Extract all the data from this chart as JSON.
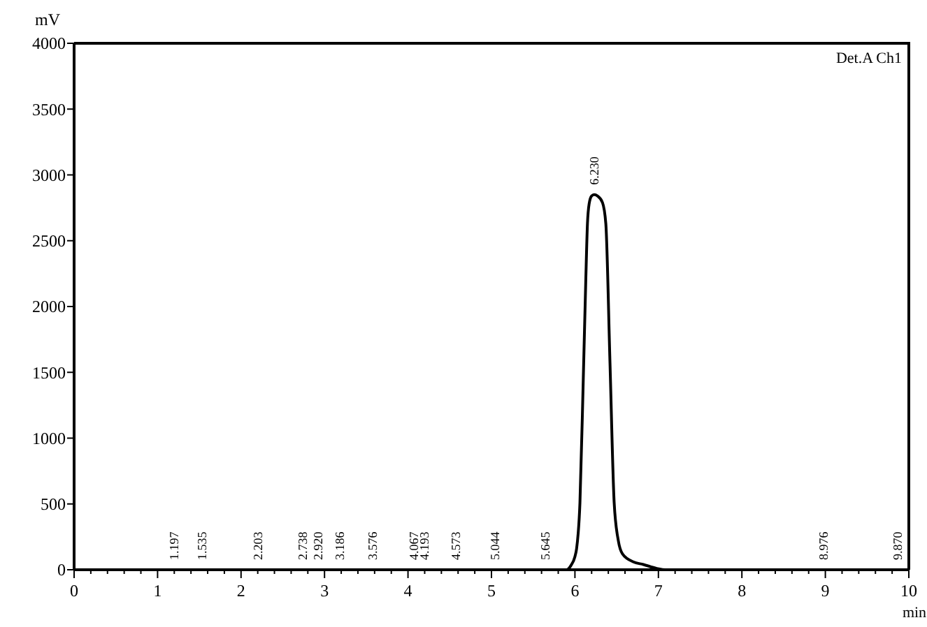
{
  "chart_data": {
    "type": "line",
    "xlabel": "min",
    "ylabel": "mV",
    "x": [
      0,
      5.9,
      5.95,
      6.0,
      6.02,
      6.06,
      6.1,
      6.13,
      6.15,
      6.17,
      6.2,
      6.23,
      6.27,
      6.33,
      6.37,
      6.42,
      6.47,
      6.52,
      6.57,
      6.7,
      6.82,
      6.98,
      7.1,
      10
    ],
    "values": [
      0,
      0,
      30,
      100,
      160,
      510,
      1450,
      2200,
      2630,
      2780,
      2840,
      2850,
      2840,
      2790,
      2630,
      1570,
      510,
      220,
      120,
      60,
      40,
      10,
      0,
      0
    ],
    "color": "#000000",
    "line_style": "solid",
    "xlim": [
      0,
      10
    ],
    "xticks": [
      0,
      {
        "value": 0.2,
        "label": null
      },
      {
        "value": 0.4,
        "label": null
      },
      {
        "value": 0.6,
        "label": null
      },
      {
        "value": 0.8,
        "label": null
      },
      1,
      {
        "value": 1.2,
        "label": null
      },
      {
        "value": 1.4,
        "label": null
      },
      {
        "value": 1.6,
        "label": null
      },
      {
        "value": 1.8,
        "label": null
      },
      2,
      {
        "value": 2.2,
        "label": null
      },
      {
        "value": 2.4,
        "label": null
      },
      {
        "value": 2.6,
        "label": null
      },
      {
        "value": 2.8,
        "label": null
      },
      3,
      {
        "value": 3.2,
        "label": null
      },
      {
        "value": 3.4,
        "label": null
      },
      {
        "value": 3.6,
        "label": null
      },
      {
        "value": 3.8,
        "label": null
      },
      4,
      {
        "value": 4.2,
        "label": null
      },
      {
        "value": 4.4,
        "label": null
      },
      {
        "value": 4.6,
        "label": null
      },
      {
        "value": 4.8,
        "label": null
      },
      5,
      {
        "value": 5.2,
        "label": null
      },
      {
        "value": 5.4,
        "label": null
      },
      {
        "value": 5.6,
        "label": null
      },
      {
        "value": 5.8,
        "label": null
      },
      6,
      {
        "value": 6.2,
        "label": null
      },
      {
        "value": 6.4,
        "label": null
      },
      {
        "value": 6.6,
        "label": null
      },
      {
        "value": 6.8,
        "label": null
      },
      7,
      {
        "value": 7.2,
        "label": null
      },
      {
        "value": 7.4,
        "label": null
      },
      {
        "value": 7.6,
        "label": null
      },
      {
        "value": 7.8,
        "label": null
      },
      8,
      {
        "value": 8.2,
        "label": null
      },
      {
        "value": 8.4,
        "label": null
      },
      {
        "value": 8.6,
        "label": null
      },
      {
        "value": 8.8,
        "label": null
      },
      9,
      {
        "value": 9.2,
        "label": null
      },
      {
        "value": 9.4,
        "label": null
      },
      {
        "value": 9.6,
        "label": null
      },
      {
        "value": 9.8,
        "label": null
      },
      10
    ],
    "ylim": [
      0,
      4000
    ],
    "yticks": [
      0,
      500,
      1000,
      1500,
      2000,
      2500,
      3000,
      3500,
      4000
    ],
    "annotations": [
      {
        "text": "1.197",
        "x": 1.197,
        "y": 0
      },
      {
        "text": "1.535",
        "x": 1.535,
        "y": 0
      },
      {
        "text": "2.203",
        "x": 2.203,
        "y": 0
      },
      {
        "text": "2.738",
        "x": 2.738,
        "y": 0
      },
      {
        "text": "2.920",
        "x": 2.92,
        "y": 0
      },
      {
        "text": "3.186",
        "x": 3.186,
        "y": 0
      },
      {
        "text": "3.576",
        "x": 3.576,
        "y": 0
      },
      {
        "text": "4.067",
        "x": 4.067,
        "y": 0
      },
      {
        "text": "4.193",
        "x": 4.193,
        "y": 0
      },
      {
        "text": "4.573",
        "x": 4.573,
        "y": 0
      },
      {
        "text": "5.044",
        "x": 5.044,
        "y": 0
      },
      {
        "text": "5.645",
        "x": 5.645,
        "y": 0
      },
      {
        "text": "6.230",
        "x": 6.23,
        "y": 2850
      },
      {
        "text": "8.976",
        "x": 8.976,
        "y": 0
      },
      {
        "text": "9.870",
        "x": 9.87,
        "y": 0
      },
      "Det.A Ch1"
    ]
  }
}
